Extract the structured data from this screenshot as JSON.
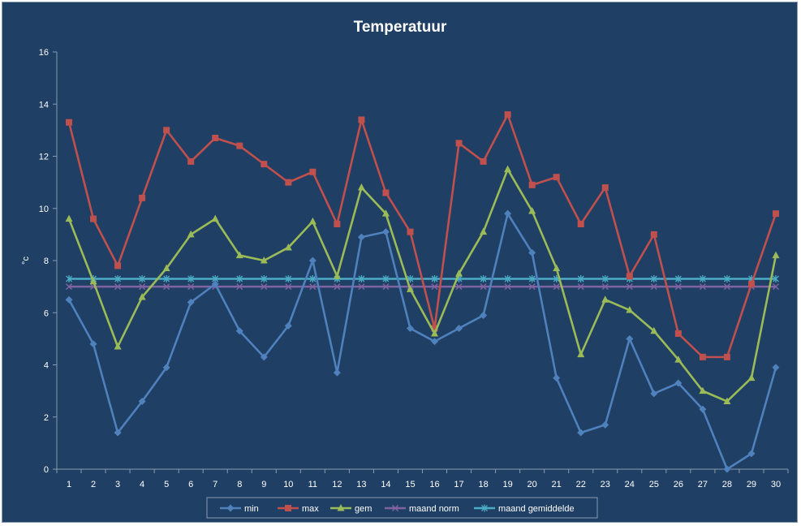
{
  "chart_data": {
    "type": "line",
    "title": "Temperatuur",
    "xlabel": "",
    "ylabel": "°c",
    "ylim": [
      0,
      16
    ],
    "yticks": [
      0,
      2,
      4,
      6,
      8,
      10,
      12,
      14,
      16
    ],
    "x": [
      1,
      2,
      3,
      4,
      5,
      6,
      7,
      8,
      9,
      10,
      11,
      12,
      13,
      14,
      15,
      16,
      17,
      18,
      19,
      20,
      21,
      22,
      23,
      24,
      25,
      26,
      27,
      28,
      29,
      30
    ],
    "grid": false,
    "legend_position": "bottom",
    "series": [
      {
        "name": "min",
        "color": "#4f81bd",
        "marker": "diamond",
        "values": [
          6.5,
          4.8,
          1.4,
          2.6,
          3.9,
          6.4,
          7.1,
          5.3,
          4.3,
          5.5,
          8.0,
          3.7,
          8.9,
          9.1,
          5.4,
          4.9,
          5.4,
          5.9,
          9.8,
          8.3,
          3.5,
          1.4,
          1.7,
          5.0,
          2.9,
          3.3,
          2.3,
          0.0,
          0.6,
          3.9
        ]
      },
      {
        "name": "max",
        "color": "#c0504d",
        "marker": "square",
        "values": [
          13.3,
          9.6,
          7.8,
          10.4,
          13.0,
          11.8,
          12.7,
          12.4,
          11.7,
          11.0,
          11.4,
          9.4,
          13.4,
          10.6,
          9.1,
          5.4,
          12.5,
          11.8,
          13.6,
          10.9,
          11.2,
          9.4,
          10.8,
          7.4,
          9.0,
          5.2,
          4.3,
          4.3,
          7.1,
          9.8
        ]
      },
      {
        "name": "gem",
        "color": "#9bbb59",
        "marker": "triangle",
        "values": [
          9.6,
          7.2,
          4.7,
          6.6,
          7.7,
          9.0,
          9.6,
          8.2,
          8.0,
          8.5,
          9.5,
          7.4,
          10.8,
          9.8,
          6.9,
          5.2,
          7.5,
          9.1,
          11.5,
          9.9,
          7.7,
          4.4,
          6.5,
          6.1,
          5.3,
          4.2,
          3.0,
          2.6,
          3.5,
          8.2
        ]
      },
      {
        "name": "maand norm",
        "color": "#8064a2",
        "marker": "x",
        "values": [
          7.0,
          7.0,
          7.0,
          7.0,
          7.0,
          7.0,
          7.0,
          7.0,
          7.0,
          7.0,
          7.0,
          7.0,
          7.0,
          7.0,
          7.0,
          7.0,
          7.0,
          7.0,
          7.0,
          7.0,
          7.0,
          7.0,
          7.0,
          7.0,
          7.0,
          7.0,
          7.0,
          7.0,
          7.0,
          7.0
        ]
      },
      {
        "name": "maand gemiddelde",
        "color": "#4bacc6",
        "marker": "star",
        "values": [
          7.3,
          7.3,
          7.3,
          7.3,
          7.3,
          7.3,
          7.3,
          7.3,
          7.3,
          7.3,
          7.3,
          7.3,
          7.3,
          7.3,
          7.3,
          7.3,
          7.3,
          7.3,
          7.3,
          7.3,
          7.3,
          7.3,
          7.3,
          7.3,
          7.3,
          7.3,
          7.3,
          7.3,
          7.3,
          7.3
        ]
      }
    ]
  }
}
